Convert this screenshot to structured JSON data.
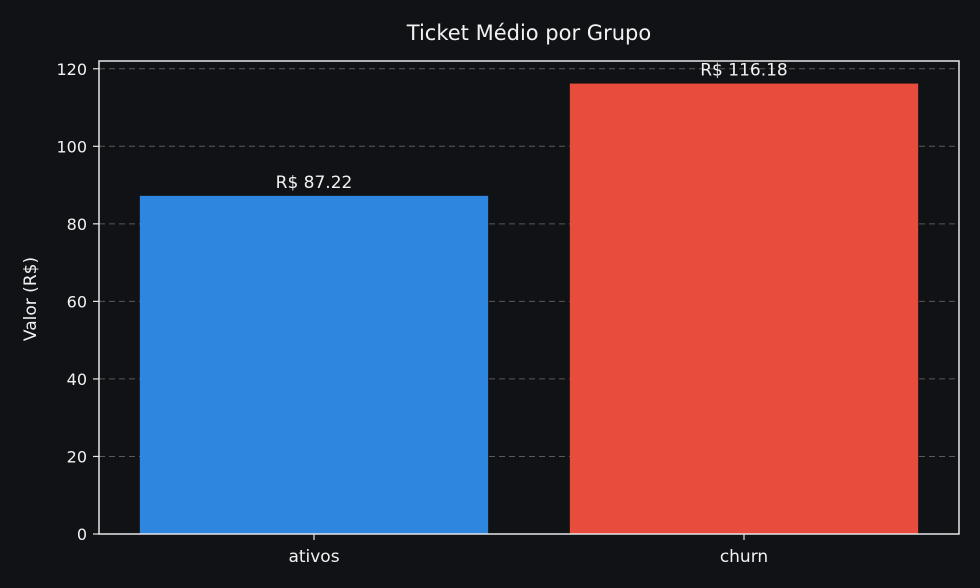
{
  "chart_data": {
    "type": "bar",
    "title": "Ticket Médio por Grupo",
    "xlabel": "",
    "ylabel": "Valor (R$)",
    "categories": [
      "ativos",
      "churn"
    ],
    "values": [
      87.22,
      116.18
    ],
    "value_labels": [
      "R$ 87.22",
      "R$ 116.18"
    ],
    "colors": [
      "#2e86de",
      "#e74c3c"
    ],
    "ylim": [
      0,
      122
    ],
    "yticks": [
      0,
      20,
      40,
      60,
      80,
      100,
      120
    ],
    "grid": true
  },
  "colors": {
    "background": "#111216",
    "axis": "#e6e6e6",
    "grid": "#5a5a5a",
    "text": "#f2f2f2"
  }
}
